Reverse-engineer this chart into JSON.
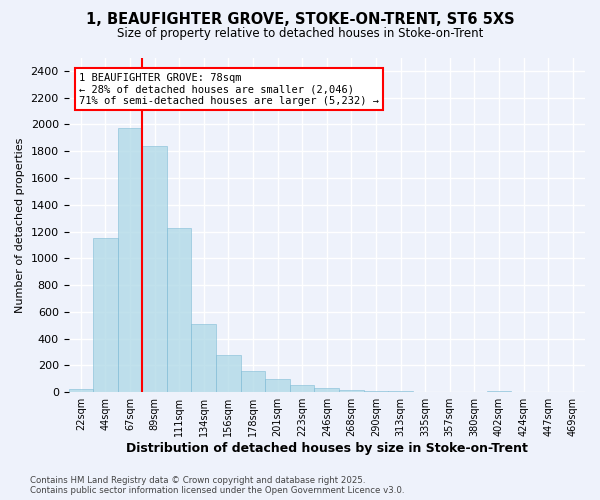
{
  "title": "1, BEAUFIGHTER GROVE, STOKE-ON-TRENT, ST6 5XS",
  "subtitle": "Size of property relative to detached houses in Stoke-on-Trent",
  "xlabel": "Distribution of detached houses by size in Stoke-on-Trent",
  "ylabel": "Number of detached properties",
  "bar_values": [
    25,
    1150,
    1975,
    1840,
    1230,
    510,
    275,
    155,
    100,
    55,
    35,
    20,
    10,
    8,
    5,
    3,
    2,
    8,
    2,
    1,
    1
  ],
  "categories": [
    "22sqm",
    "44sqm",
    "67sqm",
    "89sqm",
    "111sqm",
    "134sqm",
    "156sqm",
    "178sqm",
    "201sqm",
    "223sqm",
    "246sqm",
    "268sqm",
    "290sqm",
    "313sqm",
    "335sqm",
    "357sqm",
    "380sqm",
    "402sqm",
    "424sqm",
    "447sqm",
    "469sqm"
  ],
  "bar_color": "#add8e6",
  "bar_edge_color": "#7ab8d4",
  "bar_alpha": 0.75,
  "red_line_x": 2.5,
  "annotation_text": "1 BEAUFIGHTER GROVE: 78sqm\n← 28% of detached houses are smaller (2,046)\n71% of semi-detached houses are larger (5,232) →",
  "annotation_box_color": "white",
  "annotation_box_edge_color": "red",
  "ylim": [
    0,
    2500
  ],
  "yticks": [
    0,
    200,
    400,
    600,
    800,
    1000,
    1200,
    1400,
    1600,
    1800,
    2000,
    2200,
    2400
  ],
  "footer_line1": "Contains HM Land Registry data © Crown copyright and database right 2025.",
  "footer_line2": "Contains public sector information licensed under the Open Government Licence v3.0.",
  "bg_color": "#eef2fb",
  "grid_color": "white"
}
